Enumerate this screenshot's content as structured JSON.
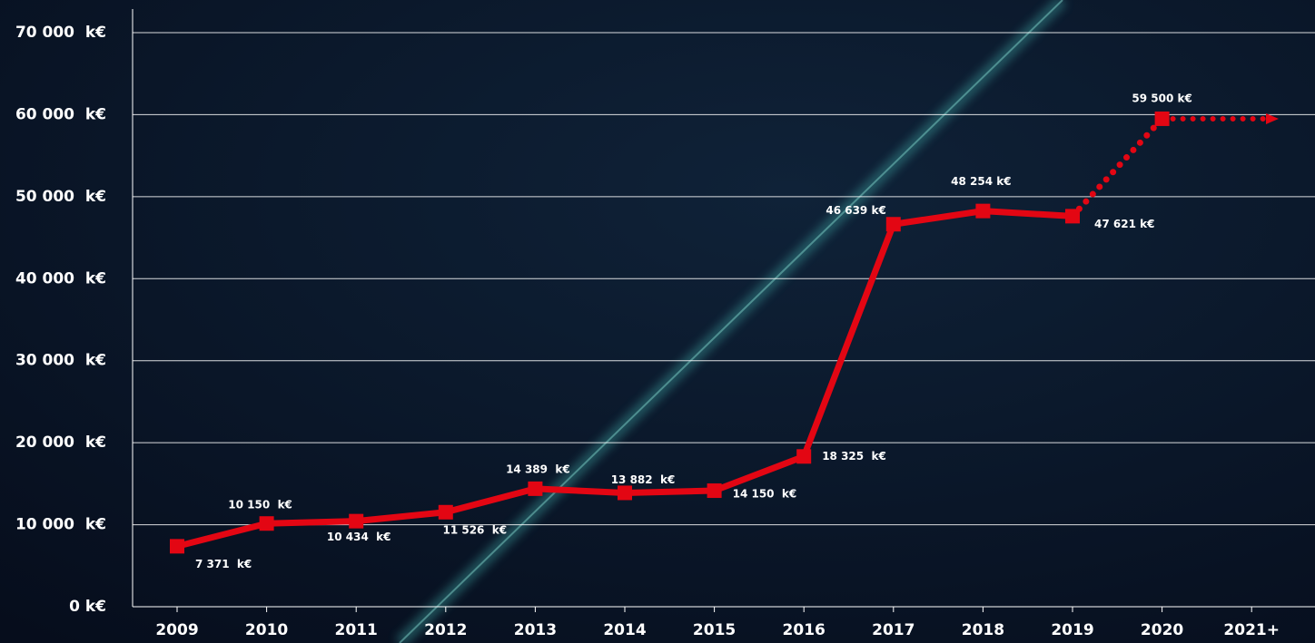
{
  "chart_data": {
    "type": "line",
    "categories": [
      "2009",
      "2010",
      "2011",
      "2012",
      "2013",
      "2014",
      "2015",
      "2016",
      "2017",
      "2018",
      "2019",
      "2020",
      "2021+"
    ],
    "values": [
      7371,
      10150,
      10434,
      11526,
      14389,
      13882,
      14150,
      18325,
      46639,
      48254,
      47621,
      59500,
      null
    ],
    "value_labels": [
      "7 371  k€",
      "10 150  k€",
      "10 434  k€",
      "11 526  k€",
      "14 389  k€",
      "13 882  k€",
      "14 150  k€",
      "18 325  k€",
      "46 639 k€",
      "48 254 k€",
      "47 621 k€",
      "59 500 k€",
      null
    ],
    "color": "#e30613",
    "dotted_from_category": "2019",
    "ylim": [
      0,
      70000
    ],
    "yticks": [
      {
        "value": 0,
        "label": "0 k€"
      },
      {
        "value": 10000,
        "label": "10 000  k€"
      },
      {
        "value": 20000,
        "label": "20 000  k€"
      },
      {
        "value": 30000,
        "label": "30 000  k€"
      },
      {
        "value": 40000,
        "label": "40 000  k€"
      },
      {
        "value": 50000,
        "label": "50 000  k€"
      },
      {
        "value": 60000,
        "label": "60 000  k€"
      },
      {
        "value": 70000,
        "label": "70 000  k€"
      }
    ],
    "grid": true
  }
}
